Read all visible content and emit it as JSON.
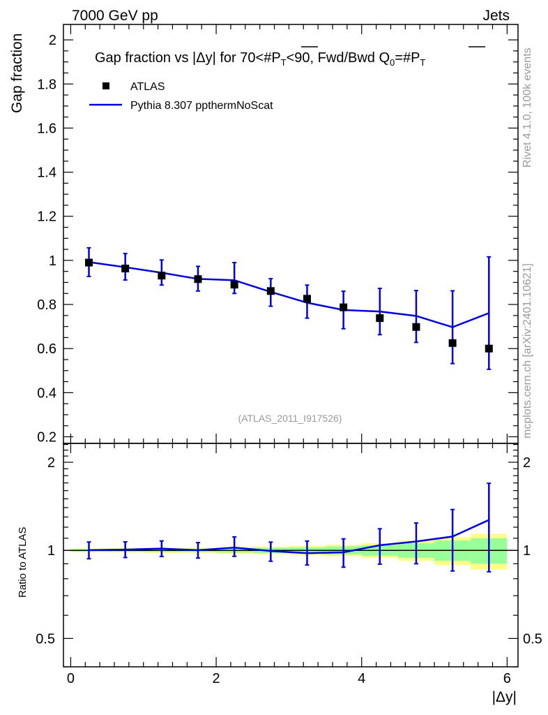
{
  "header": {
    "left": "7000 GeV pp",
    "right": "Jets"
  },
  "side_labels": {
    "rivet": "Rivet 4.1.0,  100k events",
    "mcplots": "mcplots.cern.ch [arXiv:2401.10621]"
  },
  "colors": {
    "data": "#000000",
    "mc": "#0000dd",
    "band_inner": "#99ff99",
    "band_outer": "#ffff88",
    "watermark": "#999999"
  },
  "chart_data": {
    "type": "scatter",
    "title_parts": {
      "t1": "Gap fraction vs |",
      "t2": "Δy",
      "t3": "| for 70<#",
      "t4": "P",
      "t5": "T",
      "t6": "<90, Fwd/Bwd Q",
      "t7": "0",
      "t8": "=#",
      "t9": "P",
      "t10": "T"
    },
    "ylabel": "Gap fraction",
    "ratio_ylabel": "Ratio to ATLAS",
    "xlabel": "|Δy|",
    "analysis_id": "(ATLAS_2011_I917526)",
    "xlim": [
      -0.1,
      6.15
    ],
    "ylim": [
      0.17,
      2.07
    ],
    "ratio_ylim": [
      0.4,
      2.32
    ],
    "x_ticks": [
      {
        "v": 0,
        "label": "0"
      },
      {
        "v": 2,
        "label": "2"
      },
      {
        "v": 4,
        "label": "4"
      },
      {
        "v": 6,
        "label": "6"
      }
    ],
    "y_ticks": [
      {
        "v": 0.2,
        "label": "0.2"
      },
      {
        "v": 0.4,
        "label": "0.4"
      },
      {
        "v": 0.6,
        "label": "0.6"
      },
      {
        "v": 0.8,
        "label": "0.8"
      },
      {
        "v": 1.0,
        "label": "1"
      },
      {
        "v": 1.2,
        "label": "1.2"
      },
      {
        "v": 1.4,
        "label": "1.4"
      },
      {
        "v": 1.6,
        "label": "1.6"
      },
      {
        "v": 1.8,
        "label": "1.8"
      },
      {
        "v": 2.0,
        "label": "2"
      }
    ],
    "ratio_ticks": [
      {
        "v": 0.5,
        "label": "0.5"
      },
      {
        "v": 1.0,
        "label": "1"
      },
      {
        "v": 2.0,
        "label": "2"
      }
    ],
    "legend": [
      {
        "name": "ATLAS",
        "kind": "marker"
      },
      {
        "name": "Pythia 8.307 ppthermNoScat",
        "kind": "line"
      }
    ],
    "x": [
      0.25,
      0.75,
      1.25,
      1.75,
      2.25,
      2.75,
      3.25,
      3.75,
      4.25,
      4.75,
      5.25,
      5.75
    ],
    "bin_edges": [
      0,
      0.5,
      1.0,
      1.5,
      2.0,
      2.5,
      3.0,
      3.5,
      4.0,
      4.5,
      5.0,
      5.5,
      6.0
    ],
    "series": [
      {
        "name": "ATLAS",
        "values": [
          0.99,
          0.963,
          0.931,
          0.915,
          0.89,
          0.861,
          0.826,
          0.787,
          0.738,
          0.698,
          0.625,
          0.6
        ],
        "err_low": [
          0.01,
          0.01,
          0.012,
          0.012,
          0.015,
          0.018,
          0.02,
          0.025,
          0.03,
          0.04,
          0.05,
          0.06
        ],
        "err_high": [
          0.01,
          0.01,
          0.012,
          0.012,
          0.015,
          0.018,
          0.02,
          0.025,
          0.03,
          0.04,
          0.05,
          0.06
        ]
      },
      {
        "name": "Pythia 8.307 ppthermNoScat",
        "values": [
          0.992,
          0.969,
          0.944,
          0.916,
          0.91,
          0.857,
          0.808,
          0.775,
          0.768,
          0.748,
          0.697,
          0.761
        ],
        "err_low": [
          0.065,
          0.058,
          0.056,
          0.055,
          0.06,
          0.065,
          0.07,
          0.085,
          0.105,
          0.12,
          0.165,
          0.255
        ],
        "err_high": [
          0.065,
          0.062,
          0.058,
          0.057,
          0.08,
          0.06,
          0.08,
          0.085,
          0.105,
          0.115,
          0.165,
          0.255
        ]
      }
    ],
    "ratio": {
      "band_inner": [
        0.01,
        0.011,
        0.013,
        0.013,
        0.017,
        0.021,
        0.024,
        0.032,
        0.041,
        0.057,
        0.08,
        0.1
      ],
      "band_outer": [
        0.015,
        0.017,
        0.02,
        0.02,
        0.026,
        0.03,
        0.036,
        0.045,
        0.058,
        0.08,
        0.11,
        0.14
      ],
      "mc": [
        1.002,
        1.006,
        1.014,
        1.001,
        1.022,
        0.995,
        0.978,
        0.985,
        1.041,
        1.072,
        1.115,
        1.27
      ],
      "mc_err_low": [
        0.066,
        0.061,
        0.061,
        0.06,
        0.068,
        0.077,
        0.087,
        0.109,
        0.144,
        0.172,
        0.265,
        0.425
      ],
      "mc_err_high": [
        0.066,
        0.063,
        0.063,
        0.062,
        0.09,
        0.072,
        0.098,
        0.11,
        0.144,
        0.168,
        0.264,
        0.425
      ]
    }
  }
}
